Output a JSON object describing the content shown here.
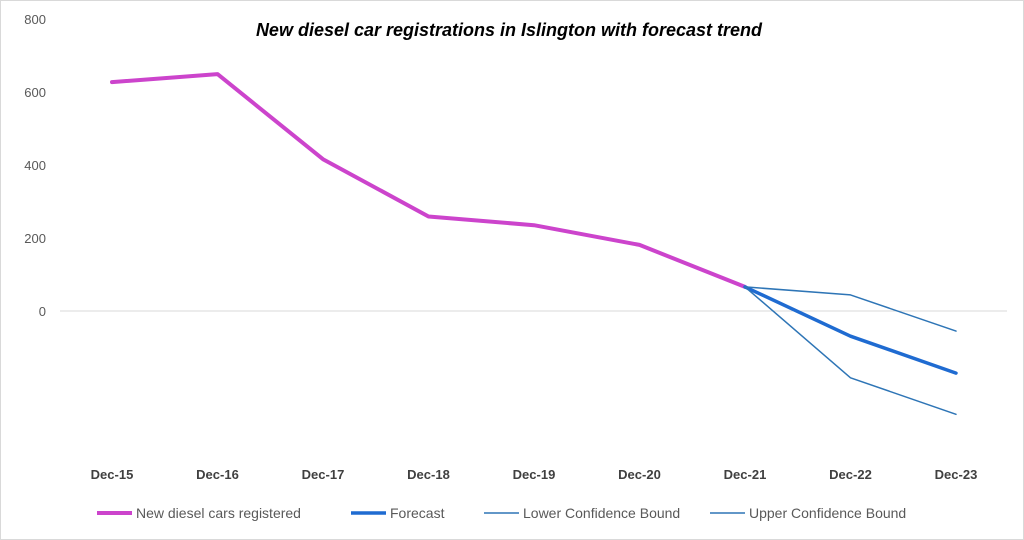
{
  "chart_data": {
    "type": "line",
    "title": "New diesel car registrations in Islington with forecast trend",
    "xlabel": "",
    "ylabel": "",
    "categories": [
      "Dec-15",
      "Dec-16",
      "Dec-17",
      "Dec-18",
      "Dec-19",
      "Dec-20",
      "Dec-21",
      "Dec-22",
      "Dec-23"
    ],
    "y_ticks": [
      "800",
      "600",
      "400",
      "200",
      "0"
    ],
    "ylim": [
      -350,
      800
    ],
    "grid": false,
    "legend_position": "bottom",
    "series": [
      {
        "name": "New diesel cars registered",
        "color": "#cc44cc",
        "values": [
          627,
          649,
          416,
          259,
          235,
          181,
          66,
          null,
          null
        ]
      },
      {
        "name": "Forecast",
        "color": "#1f6bd1",
        "values": [
          null,
          null,
          null,
          null,
          null,
          null,
          66,
          -69,
          -170
        ]
      },
      {
        "name": "Lower Confidence Bound",
        "color": "#2e75b6",
        "values": [
          null,
          null,
          null,
          null,
          null,
          null,
          66,
          -183,
          -283
        ]
      },
      {
        "name": "Upper Confidence Bound",
        "color": "#2e75b6",
        "values": [
          null,
          null,
          null,
          null,
          null,
          null,
          66,
          44,
          -55
        ]
      }
    ]
  }
}
